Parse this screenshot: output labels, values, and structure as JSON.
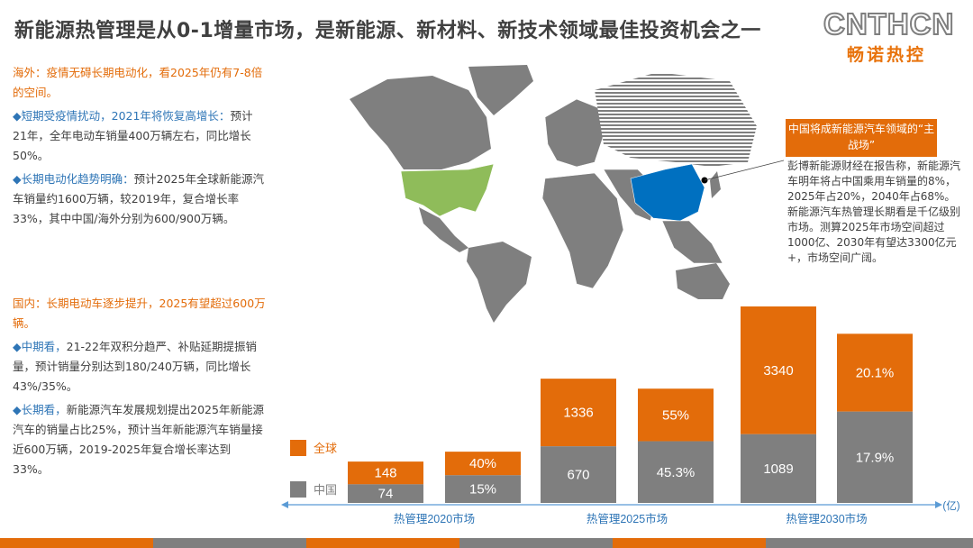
{
  "title": "新能源热管理是从0-1增量市场，是新能源、新材料、新技术领域最佳投资机会之一",
  "logo": {
    "en": "CNTHCN",
    "cn": "畅诺热控"
  },
  "overseas": {
    "heading": "海外：疫情无碍长期电动化，看2025年仍有7-8倍的空间。",
    "items": [
      {
        "bullet": "◆",
        "lead": "短期受疫情扰动，2021年将恢复高增长：",
        "body": "预计21年，全年电动车销量400万辆左右，同比增长50%。"
      },
      {
        "bullet": "◆",
        "lead": "长期电动化趋势明确：",
        "body": "预计2025年全球新能源汽车销量约1600万辆，较2019年，复合增长率33%，其中中国/海外分别为600/900万辆。"
      }
    ]
  },
  "domestic": {
    "heading": "国内：长期电动车逐步提升，2025有望超过600万辆。",
    "items": [
      {
        "bullet": "◆",
        "lead": "中期看，",
        "body": "21-22年双积分趋严、补贴延期提振销量，预计销量分别达到180/240万辆，同比增长43%/35%。"
      },
      {
        "bullet": "◆",
        "lead": "长期看，",
        "body": "新能源汽车发展规划提出2025年新能源汽车的销量占比25%，预计当年新能源汽车销量接近600万辆，2019-2025年复合增长率达到33%。"
      }
    ]
  },
  "callout": {
    "title": "中国将成新能源汽车领域的“主战场”",
    "body": "彭博新能源财经在报告称，新能源汽车明年将占中国乘用车销量的8%，2025年占20%，2040年占68%。新能源汽车热管理长期看是千亿级别市场。测算2025年市场空间超过1000亿、2030年有望达3300亿元+，市场空间广阔。"
  },
  "colors": {
    "orange": "#e36c0a",
    "gray": "#7f7f7f",
    "china_blue": "#0070c0",
    "us_green": "#8fbc5a",
    "map_gray": "#7f7f7f",
    "axis": "#5b9bd5"
  },
  "chart_data": {
    "type": "bar",
    "unit": "(亿)",
    "legend": [
      {
        "name": "全球",
        "color": "#e36c0a"
      },
      {
        "name": "中国",
        "color": "#7f7f7f"
      }
    ],
    "groups": [
      {
        "label": "热管理2020市场",
        "bars": [
          {
            "global_label": "148",
            "china_label": "74",
            "global_value": 148,
            "china_value": 74
          },
          {
            "global_label": "40%",
            "china_label": "15%"
          }
        ]
      },
      {
        "label": "热管理2025市场",
        "bars": [
          {
            "global_label": "1336",
            "china_label": "670",
            "global_value": 1336,
            "china_value": 670
          },
          {
            "global_label": "55%",
            "china_label": "45.3%"
          }
        ]
      },
      {
        "label": "热管理2030市场",
        "bars": [
          {
            "global_label": "3340",
            "china_label": "1089",
            "global_value": 3340,
            "china_value": 1089
          },
          {
            "global_label": "20.1%",
            "china_label": "17.9%"
          }
        ]
      }
    ]
  }
}
